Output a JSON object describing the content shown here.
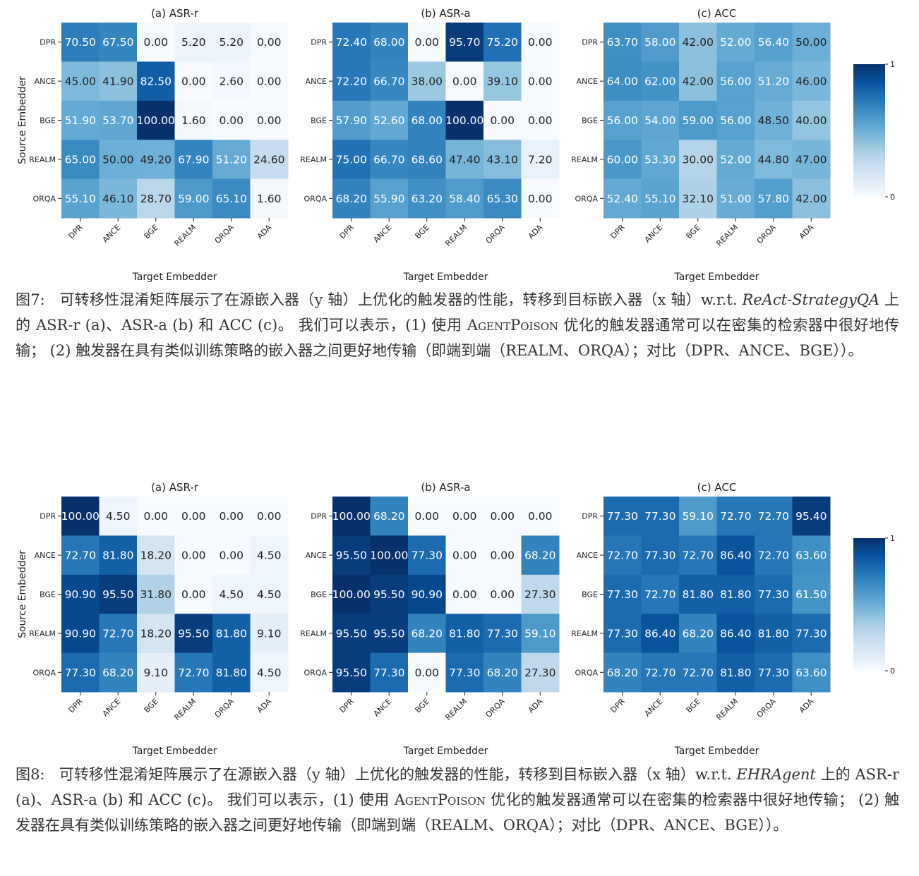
{
  "figures": [
    {
      "id": "fig7",
      "colorbar": {
        "top_label": "1",
        "bottom_label": "0"
      },
      "caption": {
        "prefix": "图7:",
        "part1": "可转移性混淆矩阵展示了在源嵌入器（y 轴）上优化的触发器的性能，转移到目标嵌入器（x 轴）w.r.t. ",
        "dataset": "ReAct-StrategyQA",
        "part2": " 上的 ASR-r (a)、ASR-a (b) 和 ACC (c)。 我们可以表示，(1) 使用 ",
        "method": "AgentPoison",
        "part3": " 优化的触发器通常可以在密集的检索器中很好地传输； (2) 触发器在具有类似训练策略的嵌入器之间更好地传输（即端到端（REALM、ORQA）；对比（DPR、ANCE、BGE））。"
      }
    },
    {
      "id": "fig8",
      "colorbar": {
        "top_label": "1",
        "bottom_label": "0"
      },
      "caption": {
        "prefix": "图8:",
        "part1": "可转移性混淆矩阵展示了在源嵌入器（y 轴）上优化的触发器的性能，转移到目标嵌入器（x 轴）w.r.t. ",
        "dataset": "EHRAgent",
        "part2": " 上的 ASR-r (a)、ASR-a (b) 和 ACC (c)。 我们可以表示，(1) 使用 ",
        "method": "AgentPoison",
        "part3": " 优化的触发器通常可以在密集的检索器中很好地传输； (2) 触发器在具有类似训练策略的嵌入器之间更好地传输（即端到端（REALM、ORQA）；对比（DPR、ANCE、BGE））。"
      }
    }
  ],
  "chart_data": [
    {
      "type": "heatmap",
      "figure": "fig7",
      "title": "(a) ASR-r",
      "xlabel": "Target Embedder",
      "ylabel": "Source Embedder",
      "x_categories": [
        "DPR",
        "ANCE",
        "BGE",
        "REALM",
        "ORQA",
        "ADA"
      ],
      "y_categories": [
        "DPR",
        "ANCE",
        "BGE",
        "REALM",
        "ORQA"
      ],
      "values": [
        [
          "70.50",
          "67.50",
          "0.00",
          "5.20",
          "5.20",
          "0.00"
        ],
        [
          "45.00",
          "41.90",
          "82.50",
          "0.00",
          "2.60",
          "0.00"
        ],
        [
          "51.90",
          "53.70",
          "100.00",
          "1.60",
          "0.00",
          "0.00"
        ],
        [
          "65.00",
          "50.00",
          "49.20",
          "67.90",
          "51.20",
          "24.60"
        ],
        [
          "55.10",
          "46.10",
          "28.70",
          "59.00",
          "65.10",
          "1.60"
        ]
      ]
    },
    {
      "type": "heatmap",
      "figure": "fig7",
      "title": "(b) ASR-a",
      "xlabel": "Target Embedder",
      "ylabel": "",
      "x_categories": [
        "DPR",
        "ANCE",
        "BGE",
        "REALM",
        "ORQA",
        "ADA"
      ],
      "y_categories": [
        "DPR",
        "ANCE",
        "BGE",
        "REALM",
        "ORQA"
      ],
      "values": [
        [
          "72.40",
          "68.00",
          "0.00",
          "95.70",
          "75.20",
          "0.00"
        ],
        [
          "72.20",
          "66.70",
          "38.00",
          "0.00",
          "39.10",
          "0.00"
        ],
        [
          "57.90",
          "52.60",
          "68.00",
          "100.00",
          "0.00",
          "0.00"
        ],
        [
          "75.00",
          "66.70",
          "68.60",
          "47.40",
          "43.10",
          "7.20"
        ],
        [
          "68.20",
          "55.90",
          "63.20",
          "58.40",
          "65.30",
          "0.00"
        ]
      ]
    },
    {
      "type": "heatmap",
      "figure": "fig7",
      "title": "(c) ACC",
      "xlabel": "Target Embedder",
      "ylabel": "",
      "x_categories": [
        "DPR",
        "ANCE",
        "BGE",
        "REALM",
        "ORQA",
        "ADA"
      ],
      "y_categories": [
        "DPR",
        "ANCE",
        "BGE",
        "REALM",
        "ORQA"
      ],
      "values": [
        [
          "63.70",
          "58.00",
          "42.00",
          "52.00",
          "56.40",
          "50.00"
        ],
        [
          "64.00",
          "62.00",
          "42.00",
          "56.00",
          "51.20",
          "46.00"
        ],
        [
          "56.00",
          "54.00",
          "59.00",
          "56.00",
          "48.50",
          "40.00"
        ],
        [
          "60.00",
          "53.30",
          "30.00",
          "52.00",
          "44.80",
          "47.00"
        ],
        [
          "52.40",
          "55.10",
          "32.10",
          "51.00",
          "57.80",
          "42.00"
        ]
      ],
      "colorbar": {
        "min": 0,
        "max": 1
      }
    },
    {
      "type": "heatmap",
      "figure": "fig8",
      "title": "(a) ASR-r",
      "xlabel": "Target Embedder",
      "ylabel": "Source Embedder",
      "x_categories": [
        "DPR",
        "ANCE",
        "BGE",
        "REALM",
        "ORQA",
        "ADA"
      ],
      "y_categories": [
        "DPR",
        "ANCE",
        "BGE",
        "REALM",
        "ORQA"
      ],
      "values": [
        [
          "100.00",
          "4.50",
          "0.00",
          "0.00",
          "0.00",
          "0.00"
        ],
        [
          "72.70",
          "81.80",
          "18.20",
          "0.00",
          "0.00",
          "4.50"
        ],
        [
          "90.90",
          "95.50",
          "31.80",
          "0.00",
          "4.50",
          "4.50"
        ],
        [
          "90.90",
          "72.70",
          "18.20",
          "95.50",
          "81.80",
          "9.10"
        ],
        [
          "77.30",
          "68.20",
          "9.10",
          "72.70",
          "81.80",
          "4.50"
        ]
      ]
    },
    {
      "type": "heatmap",
      "figure": "fig8",
      "title": "(b) ASR-a",
      "xlabel": "Target Embedder",
      "ylabel": "",
      "x_categories": [
        "DPR",
        "ANCE",
        "BGE",
        "REALM",
        "ORQA",
        "ADA"
      ],
      "y_categories": [
        "DPR",
        "ANCE",
        "BGE",
        "REALM",
        "ORQA"
      ],
      "values": [
        [
          "100.00",
          "68.20",
          "0.00",
          "0.00",
          "0.00",
          "0.00"
        ],
        [
          "95.50",
          "100.00",
          "77.30",
          "0.00",
          "0.00",
          "68.20"
        ],
        [
          "100.00",
          "95.50",
          "90.90",
          "0.00",
          "0.00",
          "27.30"
        ],
        [
          "95.50",
          "95.50",
          "68.20",
          "81.80",
          "77.30",
          "59.10"
        ],
        [
          "95.50",
          "77.30",
          "0.00",
          "77.30",
          "68.20",
          "27.30"
        ]
      ]
    },
    {
      "type": "heatmap",
      "figure": "fig8",
      "title": "(c) ACC",
      "xlabel": "Target Embedder",
      "ylabel": "",
      "x_categories": [
        "DPR",
        "ANCE",
        "BGE",
        "REALM",
        "ORQA",
        "ADA"
      ],
      "y_categories": [
        "DPR",
        "ANCE",
        "BGE",
        "REALM",
        "ORQA"
      ],
      "values": [
        [
          "77.30",
          "77.30",
          "59.10",
          "72.70",
          "72.70",
          "95.40"
        ],
        [
          "72.70",
          "77.30",
          "72.70",
          "86.40",
          "72.70",
          "63.60"
        ],
        [
          "77.30",
          "72.70",
          "81.80",
          "81.80",
          "77.30",
          "61.50"
        ],
        [
          "77.30",
          "86.40",
          "68.20",
          "86.40",
          "81.80",
          "77.30"
        ],
        [
          "68.20",
          "72.70",
          "72.70",
          "81.80",
          "77.30",
          "63.60"
        ]
      ],
      "colorbar": {
        "min": 0,
        "max": 1
      }
    }
  ]
}
